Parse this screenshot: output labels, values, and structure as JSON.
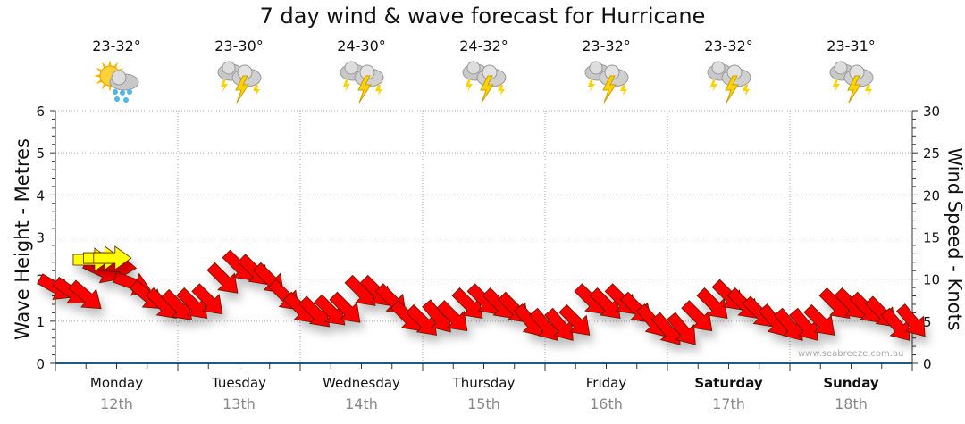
{
  "chart_data": {
    "type": "scatter",
    "title": "7 day wind & wave forecast for Hurricane",
    "ylabel_left": "Wave Height - Metres",
    "ylabel_right": "Wind Speed - Knots",
    "ylim_left": [
      0,
      6
    ],
    "ylim_right": [
      0,
      30
    ],
    "yticks_left": [
      "0",
      "1",
      "2",
      "3",
      "4",
      "5",
      "6"
    ],
    "yticks_right": [
      "0",
      "5",
      "10",
      "15",
      "20",
      "25",
      "30"
    ],
    "grid": true,
    "days": [
      {
        "day": "Monday",
        "date": "12th",
        "temp": "23-32°",
        "icon": "sun-cloud-rain",
        "bold": false
      },
      {
        "day": "Tuesday",
        "date": "13th",
        "temp": "23-30°",
        "icon": "thunderstorm",
        "bold": false
      },
      {
        "day": "Wednesday",
        "date": "14th",
        "temp": "24-30°",
        "icon": "thunderstorm",
        "bold": false
      },
      {
        "day": "Thursday",
        "date": "15th",
        "temp": "24-32°",
        "icon": "thunderstorm",
        "bold": false
      },
      {
        "day": "Friday",
        "date": "16th",
        "temp": "23-32°",
        "icon": "thunderstorm",
        "bold": false
      },
      {
        "day": "Saturday",
        "date": "17th",
        "temp": "23-32°",
        "icon": "thunderstorm",
        "bold": true
      },
      {
        "day": "Sunday",
        "date": "18th",
        "temp": "23-31°",
        "icon": "thunderstorm",
        "bold": true
      }
    ],
    "wind": {
      "color": "#ff0000",
      "hours": [
        0,
        3,
        6,
        9,
        12,
        15,
        18,
        21,
        24,
        27,
        30,
        33,
        36,
        39,
        42,
        45,
        48,
        51,
        54,
        57,
        60,
        63,
        66,
        69,
        72,
        75,
        78,
        81,
        84,
        87,
        90,
        93,
        96,
        99,
        102,
        105,
        108,
        111,
        114,
        117,
        120,
        123,
        126,
        129,
        132,
        135,
        138,
        141,
        144,
        147,
        150,
        153,
        156,
        159,
        162,
        165,
        168
      ],
      "knots": [
        9,
        8.5,
        8,
        11,
        11.5,
        9.5,
        8,
        7,
        6.8,
        7,
        7.5,
        10,
        11.5,
        11,
        10,
        8,
        6.5,
        6,
        6.2,
        6.5,
        8.5,
        8.5,
        7.5,
        5.5,
        5,
        5.5,
        5.5,
        7,
        7.5,
        7,
        6.5,
        5,
        4.5,
        4.5,
        5,
        7.5,
        7,
        7.5,
        6.5,
        5,
        4,
        4,
        5.5,
        7,
        8,
        7,
        6,
        5,
        4.5,
        4.5,
        5,
        7,
        7,
        6.5,
        6,
        4.5,
        5
      ],
      "direction_from": [
        300,
        305,
        310,
        295,
        275,
        290,
        310,
        315,
        315,
        315,
        315,
        315,
        315,
        315,
        315,
        315,
        315,
        315,
        315,
        315,
        315,
        315,
        315,
        315,
        315,
        320,
        315,
        315,
        315,
        315,
        315,
        320,
        320,
        320,
        315,
        315,
        315,
        315,
        315,
        320,
        320,
        320,
        315,
        315,
        315,
        315,
        315,
        320,
        320,
        320,
        315,
        315,
        315,
        315,
        315,
        320,
        320
      ]
    },
    "wind_highlight": {
      "color": "#ffff00",
      "hours": [
        7,
        9,
        11
      ],
      "knots": [
        12.3,
        12.5,
        12.5
      ],
      "direction_from": [
        270,
        270,
        270
      ]
    },
    "watermark": "www.seabreeze.com.au"
  }
}
